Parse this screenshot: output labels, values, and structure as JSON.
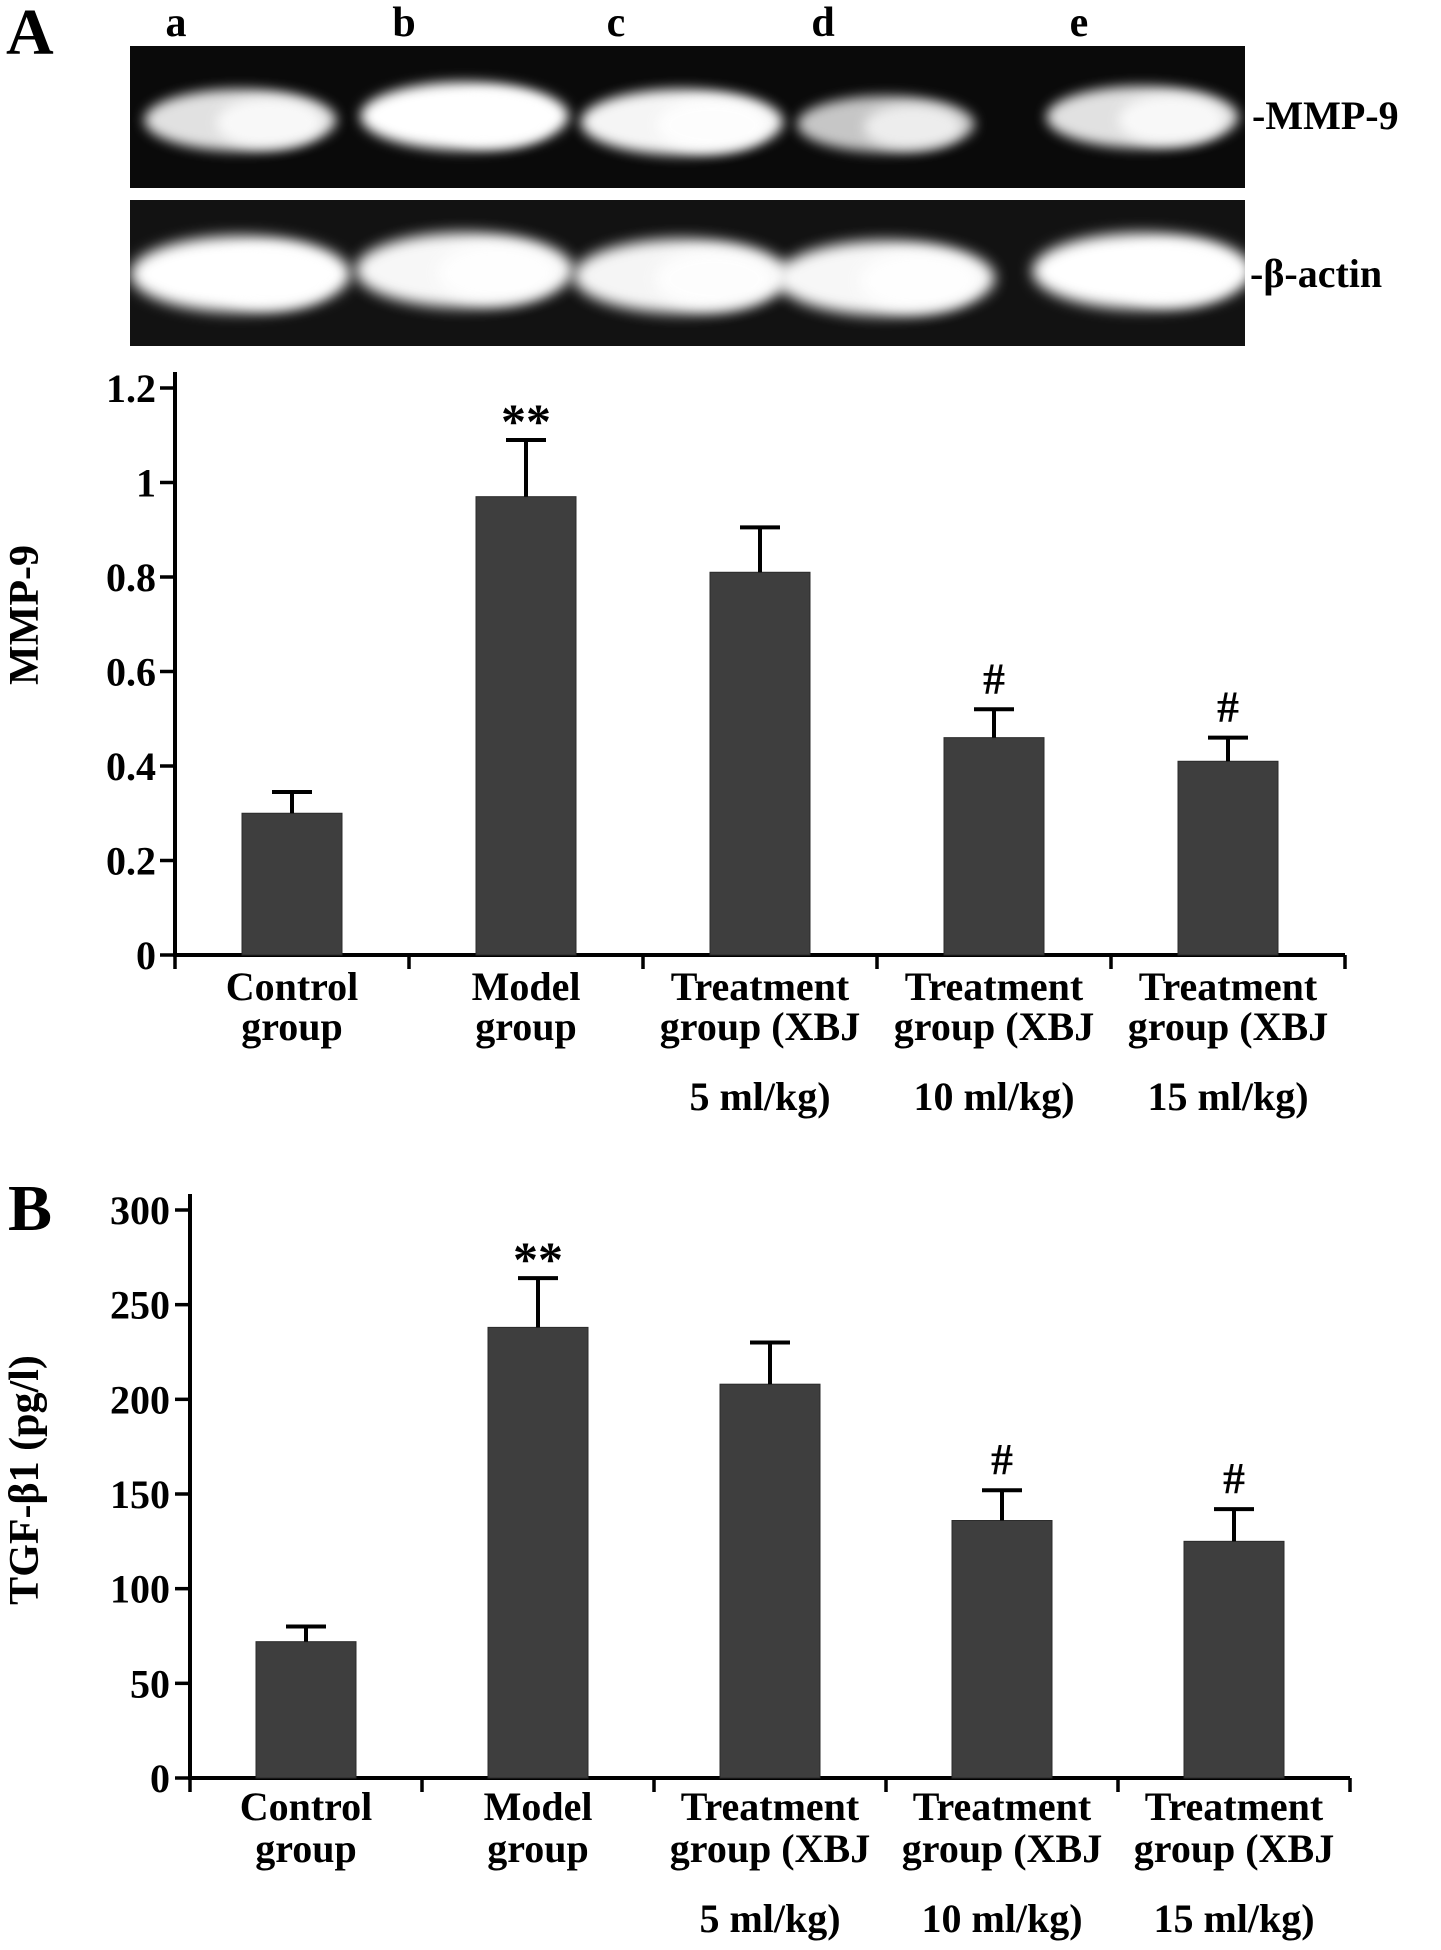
{
  "figure": {
    "panel_a": "A",
    "panel_b": "B"
  },
  "blot": {
    "lane_labels": [
      "a",
      "b",
      "c",
      "d",
      "e"
    ],
    "rows": [
      {
        "label": "-MMP-9",
        "band_intensities": [
          0.78,
          1.0,
          0.92,
          0.58,
          0.78
        ]
      },
      {
        "label": "-β-actin",
        "band_intensities": [
          1.0,
          0.95,
          0.92,
          0.95,
          1.0
        ]
      }
    ]
  },
  "chart_data": [
    {
      "type": "bar",
      "panel": "A",
      "title": "",
      "ylabel": "MMP-9",
      "xlabel": "",
      "ylim": [
        0,
        1.2
      ],
      "ytick_values": [
        0,
        0.2,
        0.4,
        0.6,
        0.8,
        1,
        1.2
      ],
      "ytick_labels": [
        "0",
        "0.2",
        "0.4",
        "0.6",
        "0.8",
        "1",
        "1.2"
      ],
      "grid": false,
      "legend": null,
      "categories": [
        [
          "Control",
          "group"
        ],
        [
          "Model",
          "group"
        ],
        [
          "Treatment",
          "group (XBJ",
          "5 ml/kg)"
        ],
        [
          "Treatment",
          "group (XBJ",
          "10 ml/kg)"
        ],
        [
          "Treatment",
          "group (XBJ",
          "15 ml/kg)"
        ]
      ],
      "values": [
        0.3,
        0.97,
        0.81,
        0.46,
        0.41
      ],
      "errors": [
        0.045,
        0.12,
        0.095,
        0.06,
        0.05
      ],
      "annotations": [
        "",
        "**",
        "",
        "#",
        "#"
      ],
      "bar_color": "#3e3e3e"
    },
    {
      "type": "bar",
      "panel": "B",
      "title": "",
      "ylabel": "TGF-β1 (pg/l)",
      "xlabel": "",
      "ylim": [
        0,
        300
      ],
      "ytick_values": [
        0,
        50,
        100,
        150,
        200,
        250,
        300
      ],
      "ytick_labels": [
        "0",
        "50",
        "100",
        "150",
        "200",
        "250",
        "300"
      ],
      "grid": false,
      "legend": null,
      "categories": [
        [
          "Control",
          "group"
        ],
        [
          "Model",
          "group"
        ],
        [
          "Treatment",
          "group (XBJ",
          "5 ml/kg)"
        ],
        [
          "Treatment",
          "group (XBJ",
          "10 ml/kg)"
        ],
        [
          "Treatment",
          "group (XBJ",
          "15 ml/kg)"
        ]
      ],
      "values": [
        72,
        238,
        208,
        136,
        125
      ],
      "errors": [
        8,
        26,
        22,
        16,
        17
      ],
      "annotations": [
        "",
        "**",
        "",
        "#",
        "#"
      ],
      "bar_color": "#3e3e3e"
    }
  ]
}
